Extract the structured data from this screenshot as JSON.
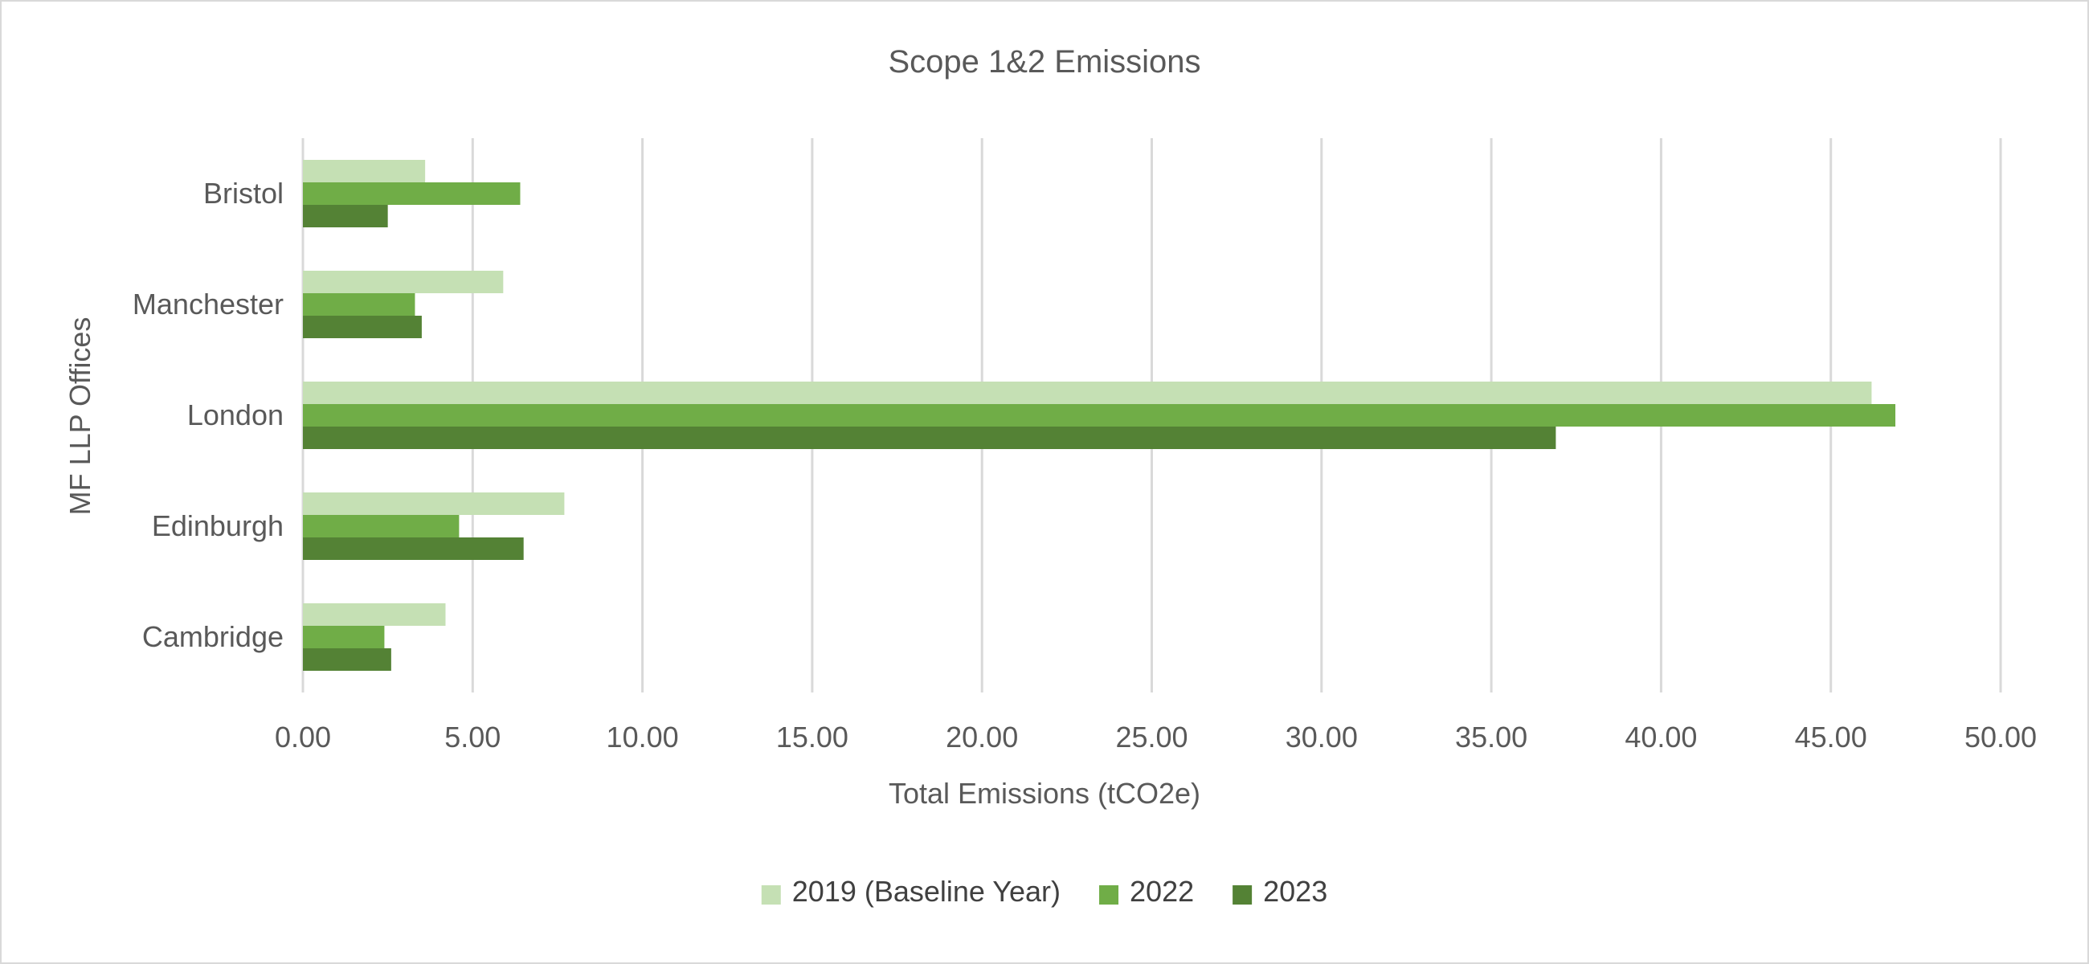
{
  "chart_data": {
    "type": "bar",
    "orientation": "horizontal",
    "title": "Scope 1&2 Emissions",
    "xlabel": "Total Emissions (tCO2e)",
    "ylabel": "MF LLP Offices",
    "categories": [
      "Bristol",
      "Manchester",
      "London",
      "Edinburgh",
      "Cambridge"
    ],
    "series": [
      {
        "name": "2019 (Baseline Year)",
        "color": "#c5e0b4",
        "values": [
          3.6,
          5.9,
          46.2,
          7.7,
          4.2
        ]
      },
      {
        "name": "2022",
        "color": "#70ad47",
        "values": [
          6.4,
          3.3,
          46.9,
          4.6,
          2.4
        ]
      },
      {
        "name": "2023",
        "color": "#548235",
        "values": [
          2.5,
          3.5,
          36.9,
          6.5,
          2.6
        ]
      }
    ],
    "xlim": [
      0,
      50
    ],
    "xticks": [
      "0.00",
      "5.00",
      "10.00",
      "15.00",
      "20.00",
      "25.00",
      "30.00",
      "35.00",
      "40.00",
      "45.00",
      "50.00"
    ],
    "grid": "vertical",
    "legend": "bottom"
  }
}
